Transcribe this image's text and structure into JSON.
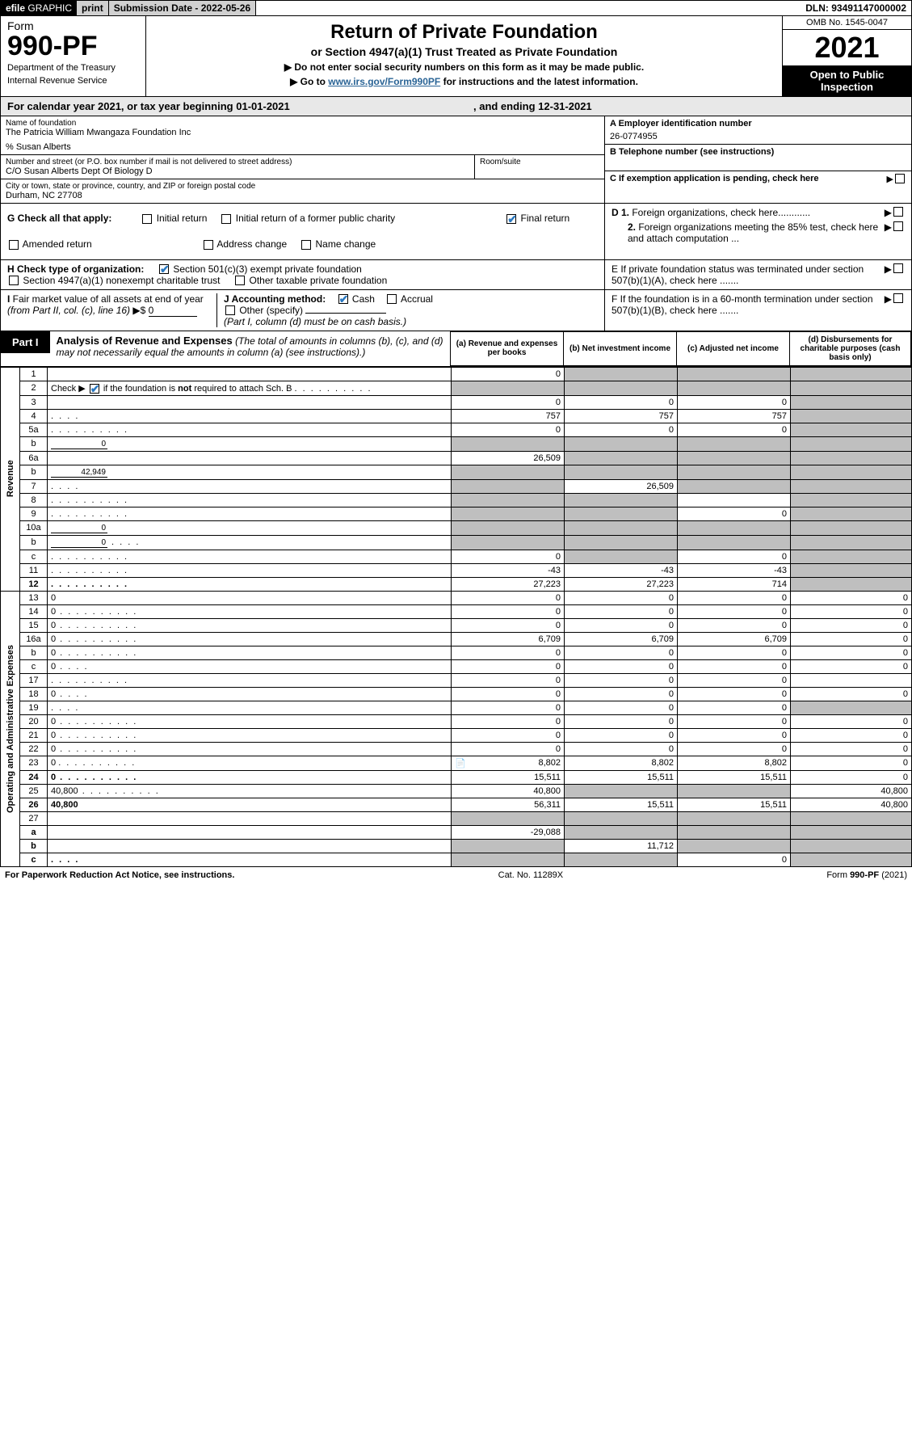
{
  "topbar": {
    "efile": "efile",
    "graphic": "GRAPHIC",
    "print": "print",
    "sub_label": "Submission Date - ",
    "sub_date": "2022-05-26",
    "dln_label": "DLN: ",
    "dln": "93491147000002"
  },
  "hdr": {
    "form_word": "Form",
    "form_no": "990-PF",
    "dept1": "Department of the Treasury",
    "dept2": "Internal Revenue Service",
    "title": "Return of Private Foundation",
    "subtitle": "or Section 4947(a)(1) Trust Treated as Private Foundation",
    "instr1": "▶ Do not enter social security numbers on this form as it may be made public.",
    "instr2_pre": "▶ Go to ",
    "instr2_link": "www.irs.gov/Form990PF",
    "instr2_post": " for instructions and the latest information.",
    "omb": "OMB No. 1545-0047",
    "year": "2021",
    "open1": "Open to Public",
    "open2": "Inspection"
  },
  "calyear": {
    "pre": "For calendar year 2021, or tax year beginning ",
    "begin": "01-01-2021",
    "mid": " , and ending ",
    "end": "12-31-2021"
  },
  "info": {
    "name_lbl": "Name of foundation",
    "name": "The Patricia William Mwangaza Foundation Inc",
    "care": "% Susan Alberts",
    "street_lbl": "Number and street (or P.O. box number if mail is not delivered to street address)",
    "street": "C/O Susan Alberts Dept Of Biology D",
    "room_lbl": "Room/suite",
    "room": "",
    "city_lbl": "City or town, state or province, country, and ZIP or foreign postal code",
    "city": "Durham, NC  27708",
    "A_lbl": "A Employer identification number",
    "A_val": "26-0774955",
    "B_lbl": "B Telephone number (see instructions)",
    "B_val": "",
    "C_lbl": "C If exemption application is pending, check here",
    "D1_lbl": "D 1. Foreign organizations, check here............",
    "D2_lbl": "2. Foreign organizations meeting the 85% test, check here and attach computation ...",
    "E_lbl": "E  If private foundation status was terminated under section 507(b)(1)(A), check here .......",
    "F_lbl": "F  If the foundation is in a 60-month termination under section 507(b)(1)(B), check here .......",
    "G_lbl": "G Check all that apply:",
    "G_opts": [
      "Initial return",
      "Initial return of a former public charity",
      "Final return",
      "Amended return",
      "Address change",
      "Name change"
    ],
    "G_checked": [
      false,
      false,
      true,
      false,
      false,
      false
    ],
    "H_lbl": "H Check type of organization:",
    "H_opts": [
      "Section 501(c)(3) exempt private foundation",
      "Section 4947(a)(1) nonexempt charitable trust",
      "Other taxable private foundation"
    ],
    "H_checked": [
      true,
      false,
      false
    ],
    "I_lbl": "I Fair market value of all assets at end of year (from Part II, col. (c), line 16)",
    "I_val": "0",
    "J_lbl": "J Accounting method:",
    "J_opts": [
      "Cash",
      "Accrual",
      "Other (specify)"
    ],
    "J_checked": [
      true,
      false,
      false
    ],
    "J_note": "(Part I, column (d) must be on cash basis.)"
  },
  "part1": {
    "tag": "Part I",
    "title": "Analysis of Revenue and Expenses",
    "title_note": " (The total of amounts in columns (b), (c), and (d) may not necessarily equal the amounts in column (a) (see instructions).)",
    "cols": {
      "a": "(a)  Revenue and expenses per books",
      "b": "(b)  Net investment income",
      "c": "(c)  Adjusted net income",
      "d": "(d)  Disbursements for charitable purposes (cash basis only)"
    }
  },
  "sections": {
    "revenue": "Revenue",
    "opex": "Operating and Administrative Expenses"
  },
  "rows": [
    {
      "n": "1",
      "d": "",
      "a": "0",
      "b": "",
      "c": "",
      "grey": [
        "b",
        "c",
        "d"
      ]
    },
    {
      "n": "2",
      "d": "",
      "dots": true,
      "a": "",
      "b": "",
      "c": "",
      "grey": [
        "a",
        "b",
        "c",
        "d"
      ],
      "ck2": true
    },
    {
      "n": "3",
      "d": "",
      "a": "0",
      "b": "0",
      "c": "0",
      "grey": [
        "d"
      ]
    },
    {
      "n": "4",
      "d": "",
      "dots": true,
      "shortdots": true,
      "a": "757",
      "b": "757",
      "c": "757",
      "grey": [
        "d"
      ]
    },
    {
      "n": "5a",
      "d": "",
      "dots": true,
      "a": "0",
      "b": "0",
      "c": "0",
      "grey": [
        "d"
      ]
    },
    {
      "n": "b",
      "d": "",
      "inlineval": "0",
      "a": "",
      "b": "",
      "c": "",
      "grey": [
        "a",
        "b",
        "c",
        "d"
      ]
    },
    {
      "n": "6a",
      "d": "",
      "a": "26,509",
      "b": "",
      "c": "",
      "grey": [
        "b",
        "c",
        "d"
      ]
    },
    {
      "n": "b",
      "d": "",
      "inlineval": "42,949",
      "a": "",
      "b": "",
      "c": "",
      "grey": [
        "a",
        "b",
        "c",
        "d"
      ]
    },
    {
      "n": "7",
      "d": "",
      "shortdots": true,
      "a": "",
      "b": "26,509",
      "c": "",
      "grey": [
        "a",
        "c",
        "d"
      ]
    },
    {
      "n": "8",
      "d": "",
      "dots": true,
      "a": "",
      "b": "",
      "c": "",
      "grey": [
        "a",
        "b",
        "d"
      ]
    },
    {
      "n": "9",
      "d": "",
      "dots": true,
      "a": "",
      "b": "",
      "c": "0",
      "grey": [
        "a",
        "b",
        "d"
      ]
    },
    {
      "n": "10a",
      "d": "",
      "inlineval": "0",
      "a": "",
      "b": "",
      "c": "",
      "grey": [
        "a",
        "b",
        "c",
        "d"
      ]
    },
    {
      "n": "b",
      "d": "",
      "shortdots": true,
      "inlineval": "0",
      "a": "",
      "b": "",
      "c": "",
      "grey": [
        "a",
        "b",
        "c",
        "d"
      ]
    },
    {
      "n": "c",
      "d": "",
      "dots": true,
      "a": "0",
      "b": "",
      "c": "0",
      "grey": [
        "b",
        "d"
      ]
    },
    {
      "n": "11",
      "d": "",
      "dots": true,
      "a": "-43",
      "b": "-43",
      "c": "-43",
      "grey": [
        "d"
      ]
    },
    {
      "n": "12",
      "d": "",
      "dots": true,
      "bold": true,
      "a": "27,223",
      "b": "27,223",
      "c": "714",
      "grey": [
        "d"
      ]
    },
    {
      "n": "13",
      "d": "0",
      "a": "0",
      "b": "0",
      "c": "0"
    },
    {
      "n": "14",
      "d": "0",
      "dots": true,
      "a": "0",
      "b": "0",
      "c": "0"
    },
    {
      "n": "15",
      "d": "0",
      "dots": true,
      "a": "0",
      "b": "0",
      "c": "0"
    },
    {
      "n": "16a",
      "d": "0",
      "dots": true,
      "a": "6,709",
      "b": "6,709",
      "c": "6,709"
    },
    {
      "n": "b",
      "d": "0",
      "dots": true,
      "a": "0",
      "b": "0",
      "c": "0"
    },
    {
      "n": "c",
      "d": "0",
      "shortdots": true,
      "a": "0",
      "b": "0",
      "c": "0"
    },
    {
      "n": "17",
      "d": "",
      "dots": true,
      "a": "0",
      "b": "0",
      "c": "0"
    },
    {
      "n": "18",
      "d": "0",
      "shortdots": true,
      "a": "0",
      "b": "0",
      "c": "0"
    },
    {
      "n": "19",
      "d": "",
      "shortdots": true,
      "a": "0",
      "b": "0",
      "c": "0",
      "grey": [
        "d"
      ]
    },
    {
      "n": "20",
      "d": "0",
      "dots": true,
      "a": "0",
      "b": "0",
      "c": "0"
    },
    {
      "n": "21",
      "d": "0",
      "dots": true,
      "a": "0",
      "b": "0",
      "c": "0"
    },
    {
      "n": "22",
      "d": "0",
      "dots": true,
      "a": "0",
      "b": "0",
      "c": "0"
    },
    {
      "n": "23",
      "d": "0",
      "dots": true,
      "icon": true,
      "a": "8,802",
      "b": "8,802",
      "c": "8,802"
    },
    {
      "n": "24",
      "d": "0",
      "bold": true,
      "dots": true,
      "a": "15,511",
      "b": "15,511",
      "c": "15,511",
      "tworow": true
    },
    {
      "n": "25",
      "d": "40,800",
      "dots": true,
      "a": "40,800",
      "b": "",
      "c": "",
      "grey": [
        "b",
        "c"
      ]
    },
    {
      "n": "26",
      "d": "40,800",
      "bold": true,
      "a": "56,311",
      "b": "15,511",
      "c": "15,511",
      "tworow": true
    },
    {
      "n": "27",
      "d": "",
      "a": "",
      "b": "",
      "c": "",
      "grey": [
        "a",
        "b",
        "c",
        "d"
      ]
    },
    {
      "n": "a",
      "d": "",
      "bold": true,
      "a": "-29,088",
      "b": "",
      "c": "",
      "grey": [
        "b",
        "c",
        "d"
      ]
    },
    {
      "n": "b",
      "d": "",
      "bold": true,
      "a": "",
      "b": "11,712",
      "c": "",
      "grey": [
        "a",
        "c",
        "d"
      ]
    },
    {
      "n": "c",
      "d": "",
      "bold": true,
      "shortdots": true,
      "a": "",
      "b": "",
      "c": "0",
      "grey": [
        "a",
        "b",
        "d"
      ]
    }
  ],
  "footer": {
    "left": "For Paperwork Reduction Act Notice, see instructions.",
    "mid": "Cat. No. 11289X",
    "right": "Form 990-PF (2021)"
  },
  "colors": {
    "link": "#2a6496",
    "grey": "#bfbfbf",
    "hdr_grey": "#e8e8e8",
    "black": "#000000",
    "check_blue": "#2a78c0"
  },
  "col_widths": {
    "sec": 24,
    "no": 34,
    "desc": "auto",
    "a": 140,
    "b": 140,
    "c": 140,
    "d": 150
  }
}
